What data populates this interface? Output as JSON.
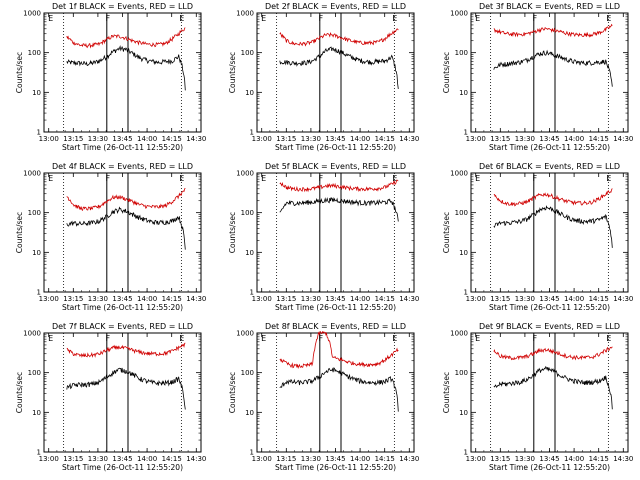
{
  "chart_data": [
    {
      "type": "line",
      "title": "Det 1f BLACK = Events, RED = LLD",
      "xlabel": "Start Time (26-Oct-11 12:55:20)",
      "ylabel": "Counts/sec",
      "yscale": "log",
      "ylim": [
        1,
        1000
      ],
      "xticks": [
        "13:00",
        "13:15",
        "13:30",
        "13:45",
        "14:00",
        "14:15",
        "14:30"
      ],
      "yticks": [
        "1",
        "10",
        "100",
        "1000"
      ],
      "markers": [
        "E",
        "F",
        "E"
      ],
      "series": [
        {
          "name": "Events",
          "color": "#000000",
          "values": [
            58,
            55,
            55,
            52,
            55,
            62,
            78,
            105,
            128,
            120,
            95,
            75,
            65,
            60,
            57,
            60,
            62,
            80,
            12
          ]
        },
        {
          "name": "LLD",
          "color": "#d00000",
          "values": [
            250,
            180,
            155,
            150,
            155,
            165,
            210,
            260,
            260,
            230,
            200,
            180,
            165,
            160,
            160,
            170,
            220,
            300,
            420
          ]
        }
      ]
    },
    {
      "type": "line",
      "title": "Det 2f BLACK = Events, RED = LLD",
      "xlabel": "Start Time (26-Oct-11 12:55:20)",
      "ylabel": "Counts/sec",
      "yscale": "log",
      "ylim": [
        1,
        1000
      ],
      "xticks": [
        "13:00",
        "13:15",
        "13:30",
        "13:45",
        "14:00",
        "14:15",
        "14:30"
      ],
      "yticks": [
        "1",
        "10",
        "100",
        "1000"
      ],
      "markers": [
        "E",
        "F",
        "E"
      ],
      "series": [
        {
          "name": "Events",
          "color": "#000000",
          "values": [
            60,
            58,
            55,
            55,
            56,
            62,
            80,
            110,
            125,
            110,
            90,
            75,
            65,
            60,
            58,
            60,
            62,
            78,
            12
          ]
        },
        {
          "name": "LLD",
          "color": "#d00000",
          "values": [
            300,
            200,
            170,
            165,
            170,
            185,
            230,
            280,
            280,
            250,
            220,
            195,
            180,
            175,
            178,
            185,
            230,
            310,
            400
          ]
        }
      ]
    },
    {
      "type": "line",
      "title": "Det 3f BLACK = Events, RED = LLD",
      "xlabel": "Start Time (26-Oct-11 12:55:20)",
      "ylabel": "Counts/sec",
      "yscale": "log",
      "ylim": [
        1,
        1000
      ],
      "xticks": [
        "13:00",
        "13:15",
        "13:30",
        "13:45",
        "14:00",
        "14:15",
        "14:30"
      ],
      "yticks": [
        "1",
        "10",
        "100",
        "1000"
      ],
      "markers": [
        "E",
        "F",
        "E"
      ],
      "series": [
        {
          "name": "Events",
          "color": "#000000",
          "values": [
            40,
            50,
            52,
            55,
            58,
            65,
            80,
            95,
            100,
            90,
            78,
            68,
            60,
            56,
            55,
            56,
            58,
            60,
            13
          ]
        },
        {
          "name": "LLD",
          "color": "#d00000",
          "values": [
            380,
            330,
            300,
            290,
            290,
            300,
            330,
            380,
            400,
            370,
            340,
            310,
            290,
            280,
            280,
            290,
            320,
            380,
            480
          ]
        }
      ]
    },
    {
      "type": "line",
      "title": "Det 4f BLACK = Events, RED = LLD",
      "xlabel": "Start Time (26-Oct-11 12:55:20)",
      "ylabel": "Counts/sec",
      "yscale": "log",
      "ylim": [
        1,
        1000
      ],
      "xticks": [
        "13:00",
        "13:15",
        "13:30",
        "13:45",
        "14:00",
        "14:15",
        "14:30"
      ],
      "yticks": [
        "1",
        "10",
        "100",
        "1000"
      ],
      "markers": [
        "E",
        "F",
        "E"
      ],
      "series": [
        {
          "name": "Events",
          "color": "#000000",
          "values": [
            50,
            55,
            52,
            54,
            56,
            62,
            78,
            105,
            120,
            110,
            90,
            75,
            65,
            58,
            56,
            58,
            62,
            78,
            12
          ]
        },
        {
          "name": "LLD",
          "color": "#d00000",
          "values": [
            260,
            160,
            130,
            125,
            130,
            145,
            190,
            240,
            250,
            220,
            190,
            160,
            145,
            140,
            140,
            150,
            190,
            260,
            380
          ]
        }
      ]
    },
    {
      "type": "line",
      "title": "Det 5f BLACK = Events, RED = LLD",
      "xlabel": "Start Time (26-Oct-11 12:55:20)",
      "ylabel": "Counts/sec",
      "yscale": "log",
      "ylim": [
        1,
        1000
      ],
      "xticks": [
        "13:00",
        "13:15",
        "13:30",
        "13:45",
        "14:00",
        "14:15",
        "14:30"
      ],
      "yticks": [
        "1",
        "10",
        "100",
        "1000"
      ],
      "markers": [
        "E",
        "F",
        "E"
      ],
      "series": [
        {
          "name": "Events",
          "color": "#000000",
          "values": [
            90,
            175,
            175,
            175,
            180,
            185,
            195,
            205,
            210,
            205,
            195,
            185,
            180,
            175,
            175,
            180,
            185,
            195,
            60
          ]
        },
        {
          "name": "LLD",
          "color": "#d00000",
          "values": [
            580,
            430,
            400,
            390,
            395,
            405,
            430,
            470,
            480,
            460,
            430,
            410,
            400,
            395,
            400,
            410,
            440,
            520,
            640
          ]
        }
      ]
    },
    {
      "type": "line",
      "title": "Det 6f BLACK = Events, RED = LLD",
      "xlabel": "Start Time (26-Oct-11 12:55:20)",
      "ylabel": "Counts/sec",
      "yscale": "log",
      "ylim": [
        1,
        1000
      ],
      "xticks": [
        "13:00",
        "13:15",
        "13:30",
        "13:45",
        "14:00",
        "14:15",
        "14:30"
      ],
      "yticks": [
        "1",
        "10",
        "100",
        "1000"
      ],
      "markers": [
        "E",
        "F",
        "E"
      ],
      "series": [
        {
          "name": "Events",
          "color": "#000000",
          "values": [
            45,
            55,
            55,
            57,
            60,
            68,
            88,
            120,
            135,
            120,
            95,
            78,
            67,
            62,
            60,
            62,
            66,
            80,
            15
          ]
        },
        {
          "name": "LLD",
          "color": "#d00000",
          "values": [
            280,
            200,
            170,
            165,
            170,
            185,
            230,
            280,
            290,
            255,
            220,
            195,
            180,
            175,
            175,
            185,
            225,
            290,
            380
          ]
        }
      ]
    },
    {
      "type": "line",
      "title": "Det 7f BLACK = Events, RED = LLD",
      "xlabel": "Start Time (26-Oct-11 12:55:20)",
      "ylabel": "Counts/sec",
      "yscale": "log",
      "ylim": [
        1,
        1000
      ],
      "xticks": [
        "13:00",
        "13:15",
        "13:30",
        "13:45",
        "14:00",
        "14:15",
        "14:30"
      ],
      "yticks": [
        "1",
        "10",
        "100",
        "1000"
      ],
      "markers": [
        "E",
        "F",
        "E"
      ],
      "series": [
        {
          "name": "Events",
          "color": "#000000",
          "values": [
            42,
            48,
            50,
            50,
            52,
            58,
            75,
            100,
            120,
            110,
            90,
            72,
            62,
            56,
            54,
            55,
            58,
            70,
            12
          ]
        },
        {
          "name": "LLD",
          "color": "#d00000",
          "values": [
            380,
            300,
            270,
            270,
            280,
            300,
            360,
            420,
            440,
            410,
            370,
            330,
            310,
            300,
            300,
            310,
            350,
            430,
            520
          ]
        }
      ]
    },
    {
      "type": "line",
      "title": "Det 8f BLACK = Events, RED = LLD",
      "xlabel": "Start Time (26-Oct-11 12:55:20)",
      "ylabel": "Counts/sec",
      "yscale": "log",
      "ylim": [
        1,
        1000
      ],
      "xticks": [
        "13:00",
        "13:15",
        "13:30",
        "13:45",
        "14:00",
        "14:15",
        "14:30"
      ],
      "yticks": [
        "1",
        "10",
        "100",
        "1000"
      ],
      "markers": [
        "E",
        "F",
        "E"
      ],
      "series": [
        {
          "name": "Events",
          "color": "#000000",
          "values": [
            40,
            60,
            58,
            56,
            58,
            62,
            78,
            105,
            120,
            105,
            85,
            72,
            63,
            58,
            56,
            57,
            60,
            72,
            12
          ]
        },
        {
          "name": "LLD",
          "color": "#d00000",
          "values": [
            220,
            170,
            150,
            145,
            150,
            165,
            1000,
            1000,
            240,
            220,
            195,
            175,
            165,
            160,
            160,
            170,
            210,
            280,
            380
          ]
        }
      ]
    },
    {
      "type": "line",
      "title": "Det 9f BLACK = Events, RED = LLD",
      "xlabel": "Start Time (26-Oct-11 12:55:20)",
      "ylabel": "Counts/sec",
      "yscale": "log",
      "ylim": [
        1,
        1000
      ],
      "xticks": [
        "13:00",
        "13:15",
        "13:30",
        "13:45",
        "14:00",
        "14:15",
        "14:30"
      ],
      "yticks": [
        "1",
        "10",
        "100",
        "1000"
      ],
      "markers": [
        "E",
        "F",
        "E"
      ],
      "series": [
        {
          "name": "Events",
          "color": "#000000",
          "values": [
            40,
            52,
            52,
            55,
            58,
            66,
            85,
            115,
            125,
            110,
            88,
            72,
            63,
            58,
            56,
            58,
            62,
            76,
            13
          ]
        },
        {
          "name": "LLD",
          "color": "#d00000",
          "values": [
            360,
            260,
            240,
            235,
            240,
            255,
            300,
            360,
            380,
            340,
            300,
            265,
            245,
            240,
            240,
            250,
            290,
            360,
            450
          ]
        }
      ]
    }
  ]
}
